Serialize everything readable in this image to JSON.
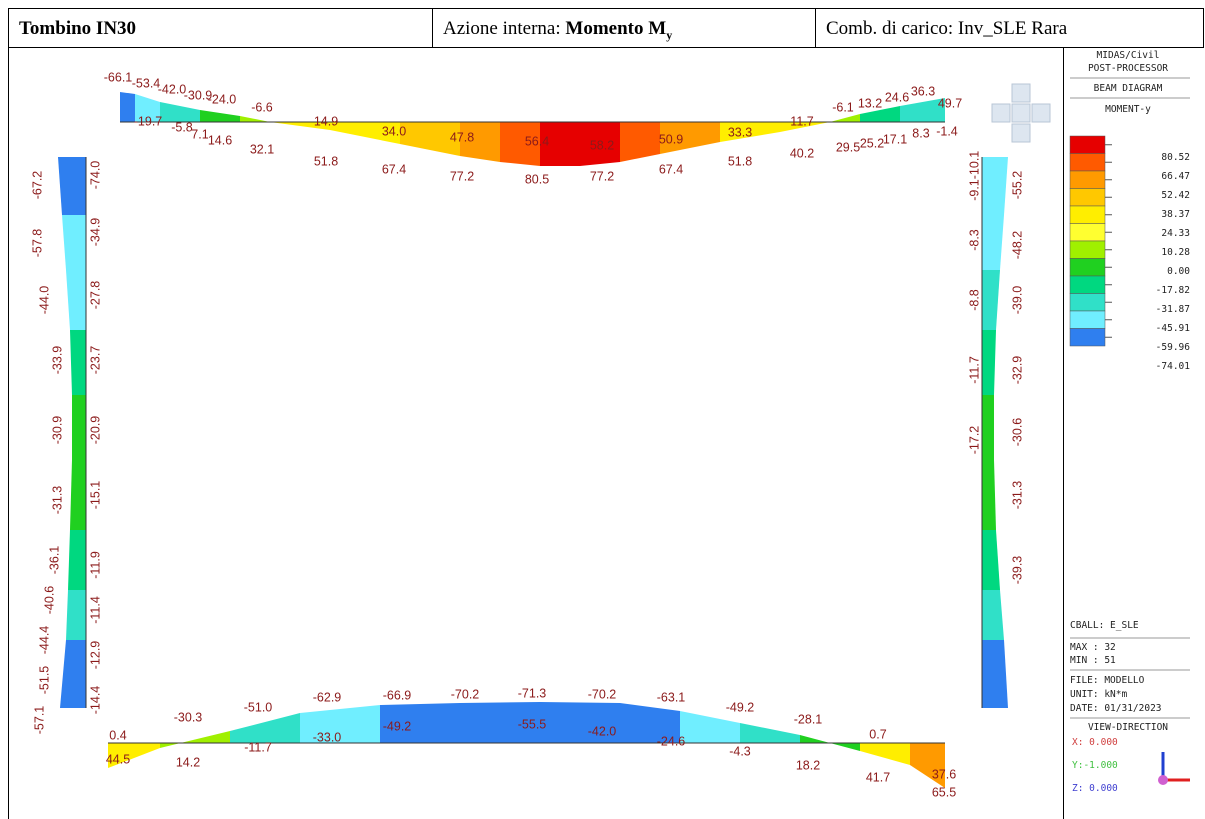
{
  "header": {
    "title": "Tombino IN30",
    "action_label": "Azione interna:",
    "action_value": "Momento M",
    "action_sub": "y",
    "combo": "Comb. di carico: Inv_SLE Rara"
  },
  "legend": {
    "software": "MIDAS/Civil",
    "module": "POST-PROCESSOR",
    "diagram": "BEAM DIAGRAM",
    "quantity": "MOMENT-y",
    "levels": [
      "80.52",
      "66.47",
      "52.42",
      "38.37",
      "24.33",
      "10.28",
      "0.00",
      "-17.82",
      "-31.87",
      "-45.91",
      "-59.96",
      "-74.01"
    ],
    "colors": [
      "#e60000",
      "#ff5a00",
      "#ff9a00",
      "#ffc800",
      "#ffee00",
      "#ffff30",
      "#a0f000",
      "#20d020",
      "#00d880",
      "#30e0c8",
      "#70eeff",
      "#2f7fef"
    ]
  },
  "info": {
    "cball": "CBALL: E_SLE",
    "max": "MAX : 32",
    "min": "MIN : 51",
    "file": "FILE: MODELLO",
    "unit": "UNIT: kN*m",
    "date": "DATE: 01/31/2023",
    "view": "VIEW-DIRECTION",
    "x": "X: 0.000",
    "y": "Y:-1.000",
    "z": "Z: 0.000"
  },
  "labels": [
    "-66.1",
    "-53.4",
    "-42.0",
    "-30.9",
    "-24.0",
    "-6.6",
    "14.9",
    "34.0",
    "47.8",
    "56.4",
    "58.2",
    "50.9",
    "33.3",
    "11.7",
    "-6.1",
    "13.2",
    "24.6",
    "36.3",
    "49.7",
    "-19.7",
    "-5.8",
    "7.1",
    "14.6",
    "32.1",
    "51.8",
    "67.4",
    "77.2",
    "80.5",
    "77.2",
    "67.4",
    "51.8",
    "40.2",
    "29.5",
    "25.2",
    "17.1",
    "8.3",
    "-1.4",
    "-67.2",
    "-57.8",
    "-44.0",
    "-33.9",
    "-30.9",
    "-31.3",
    "-36.1",
    "-40.6",
    "-44.4",
    "-51.5",
    "-57.1",
    "-74.0",
    "-34.9",
    "-27.8",
    "-23.7",
    "-20.9",
    "-15.1",
    "-11.9",
    "-11.4",
    "-12.9",
    "-14.4",
    "-10.1",
    "-9.1",
    "-8.3",
    "-8.8",
    "-11.7",
    "-17.2",
    "-39.0",
    "-48.2",
    "-55.2",
    "-32.9",
    "-30.6",
    "-31.3",
    "-39.3",
    "0.4",
    "44.5",
    "-30.3",
    "14.2",
    "-51.0",
    "-11.7",
    "-62.9",
    "-33.0",
    "-66.9",
    "-49.2",
    "-70.2",
    "-71.3",
    "-55.5",
    "-70.2",
    "-42.0",
    "-63.1",
    "-24.6",
    "-49.2",
    "-4.3",
    "-28.1",
    "18.2",
    "0.7",
    "41.7",
    "37.6",
    "65.5"
  ]
}
